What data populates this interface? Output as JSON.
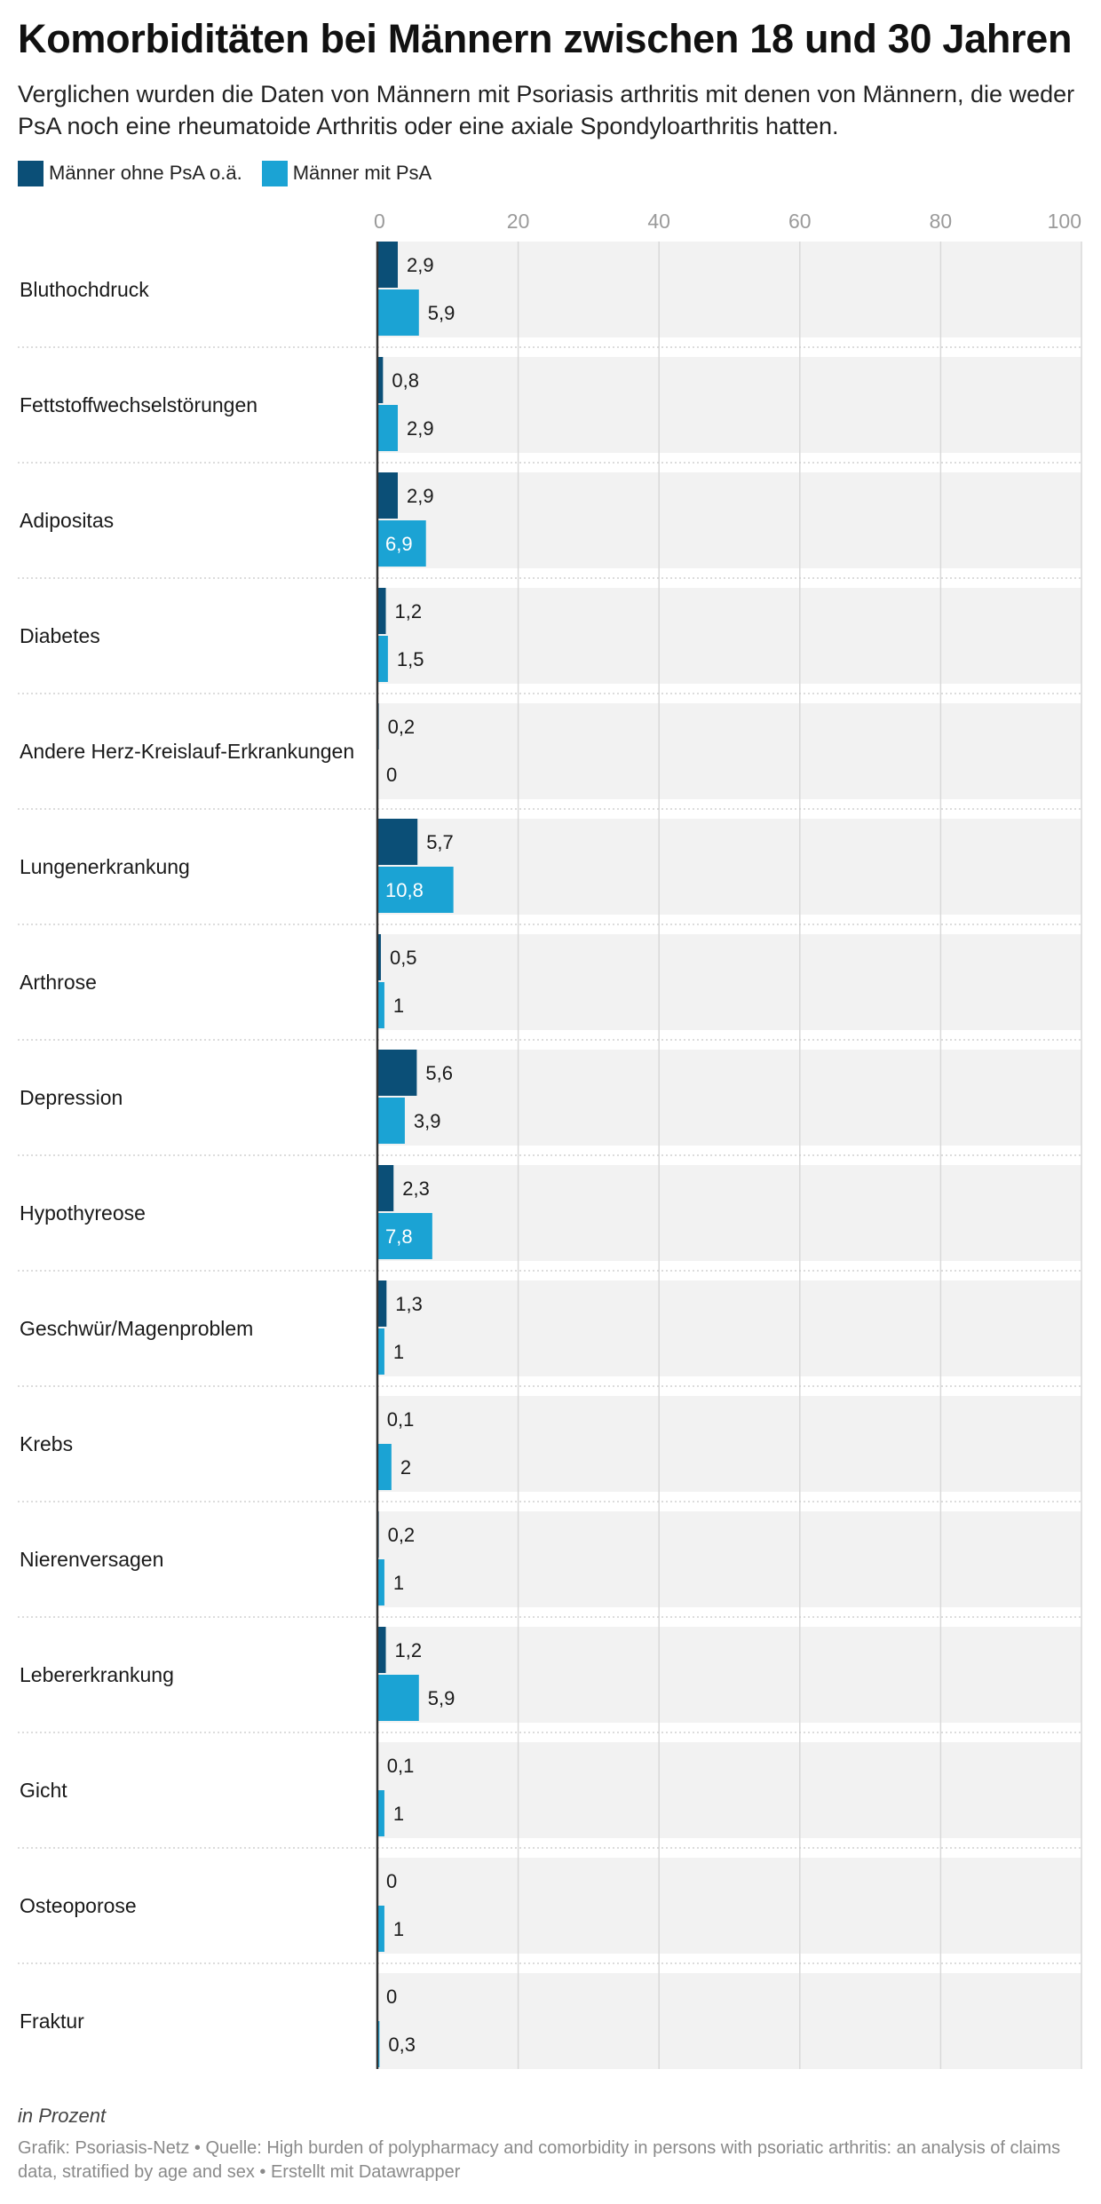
{
  "header": {
    "title": "Komorbiditäten bei Männern zwischen 18 und 30 Jahren",
    "subtitle": "Verglichen wurden die Daten von Männern mit Psoriasis arthritis mit denen von Männern, die weder PsA noch eine rheumatoide Arthritis oder eine axiale Spondyloarthritis hatten."
  },
  "footer": {
    "notes": "in Prozent",
    "credits": "Grafik: Psoriasis-Netz • Quelle: High burden of polypharmacy and comorbidity in persons with psoriatic arthritis: an analysis of claims data, stratified by age and sex • Erstellt mit Datawrapper"
  },
  "colors": {
    "series_ohne": "#0b4f77",
    "series_mit": "#1ba3d4",
    "row_background": "#f2f2f2",
    "gridline": "#d9d9d9",
    "axis_line": "#333333",
    "tick_label": "#9a9a9a",
    "separator": "#c8c8c8"
  },
  "chart_data": {
    "type": "bar",
    "orientation": "horizontal",
    "xlim": [
      0,
      100
    ],
    "x_ticks": [
      "0",
      "20",
      "40",
      "60",
      "80",
      "100"
    ],
    "x_tick_values": [
      0,
      20,
      40,
      60,
      80,
      100
    ],
    "grid": true,
    "legend_position": "top-left",
    "categories": [
      "Bluthochdruck",
      "Fettstoffwechselstörungen",
      "Adipositas",
      "Diabetes",
      "Andere Herz-Kreislauf-Erkrankungen",
      "Lungenerkrankung",
      "Arthrose",
      "Depression",
      "Hypothyreose",
      "Geschwür/Magenproblem",
      "Krebs",
      "Nierenversagen",
      "Lebererkrankung",
      "Gicht",
      "Osteoporose",
      "Fraktur"
    ],
    "series": [
      {
        "name": "Männer ohne PsA o.ä.",
        "values": [
          2.9,
          0.8,
          2.9,
          1.2,
          0.2,
          5.7,
          0.5,
          5.6,
          2.3,
          1.3,
          0.1,
          0.2,
          1.2,
          0.1,
          0,
          0
        ],
        "labels": [
          "2,9",
          "0,8",
          "2,9",
          "1,2",
          "0,2",
          "5,7",
          "0,5",
          "5,6",
          "2,3",
          "1,3",
          "0,1",
          "0,2",
          "1,2",
          "0,1",
          "0",
          "0"
        ]
      },
      {
        "name": "Männer mit PsA",
        "values": [
          5.9,
          2.9,
          6.9,
          1.5,
          0,
          10.8,
          1,
          3.9,
          7.8,
          1,
          2,
          1,
          5.9,
          1,
          1,
          0.3
        ],
        "labels": [
          "5,9",
          "2,9",
          "6,9",
          "1,5",
          "0",
          "10,8",
          "1",
          "3,9",
          "7,8",
          "1",
          "2",
          "1",
          "5,9",
          "1",
          "1",
          "0,3"
        ]
      }
    ]
  }
}
